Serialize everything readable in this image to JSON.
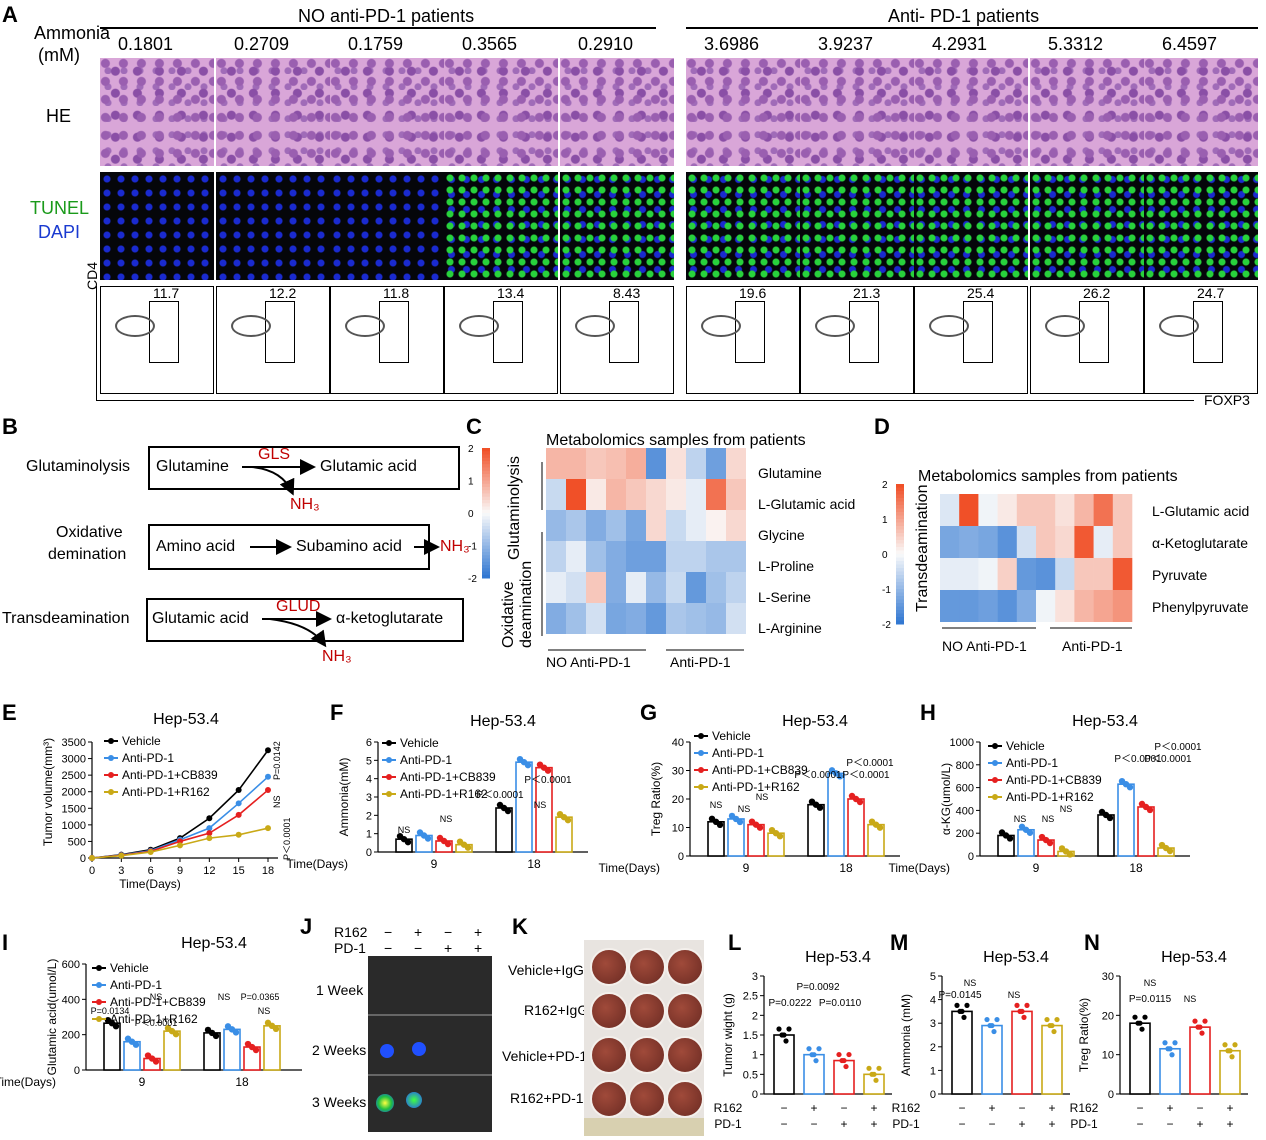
{
  "panelA": {
    "label": "A",
    "ammonia_label": "Ammonia",
    "ammonia_unit": "(mM)",
    "group_no": "NO anti-PD-1 patients",
    "group_anti": "Anti- PD-1 patients",
    "values": [
      "0.1801",
      "0.2709",
      "0.1759",
      "0.3565",
      "0.2910",
      "3.6986",
      "3.9237",
      "4.2931",
      "5.3312",
      "6.4597"
    ],
    "row_he": "HE",
    "row_tunel": "TUNEL",
    "row_dapi": "DAPI",
    "cd4": "CD4",
    "foxp3": "FOXP3",
    "treg": [
      "11.7",
      "12.2",
      "11.8",
      "13.4",
      "8.43",
      "19.6",
      "21.3",
      "25.4",
      "26.2",
      "24.7"
    ]
  },
  "panelB": {
    "label": "B",
    "row1_name": "Glutaminolysis",
    "row1_from": "Glutamine",
    "row1_enzyme": "GLS",
    "row1_to": "Glutamic acid",
    "row1_by": "NH₃",
    "row2_name1": "Oxidative",
    "row2_name2": "demination",
    "row2_from": "Amino acid",
    "row2_to": "Subamino acid",
    "row2_by": "NH₃",
    "row3_name": "Transdeamination",
    "row3_from": "Glutamic acid",
    "row3_enzyme": "GLUD",
    "row3_to": "α-ketoglutarate",
    "row3_by": "NH₃"
  },
  "panelC": {
    "label": "C",
    "title": "Metabolomics samples from patients",
    "rows": [
      "Glutamine",
      "L-Glutamic acid",
      "Glycine",
      "L-Proline",
      "L-Serine",
      "L-Arginine"
    ],
    "group1": "Glutaminolysis",
    "group2a": "Oxidative",
    "group2b": "deamination",
    "x1": "NO Anti-PD-1",
    "x2": "Anti-PD-1",
    "scale": [
      "2",
      "1",
      "0",
      "-1",
      "-2"
    ]
  },
  "panelD": {
    "label": "D",
    "title": "Metabolomics samples from patients",
    "rows": [
      "L-Glutamic acid",
      "α-Ketoglutarate",
      "Pyruvate",
      "Phenylpyruvate"
    ],
    "group": "Transdeamination",
    "x1": "NO Anti-PD-1",
    "x2": "Anti-PD-1",
    "scale": [
      "2",
      "1",
      "0",
      "-1",
      "-2"
    ]
  },
  "panelE": {
    "label": "E",
    "title": "Hep-53.4",
    "ylabel": "Tumor volume(mm³)",
    "xlabel": "Time(Days)",
    "legend": [
      "Vehicle",
      "Anti-PD-1",
      "Anti-PD-1+CB839",
      "Anti-PD-1+R162"
    ],
    "p1": "P=0.0142",
    "ns": "NS",
    "p2": "P＜0.0001"
  },
  "panelF": {
    "label": "F",
    "title": "Hep-53.4",
    "ylabel": "Ammonia(mM)",
    "xlabel": "Time(Days)",
    "legend": [
      "Vehicle",
      "Anti-PD-1",
      "Anti-PD-1+CB839",
      "Anti-PD-1+R162"
    ],
    "p1": "P＜0.0001",
    "p2": "P＜0.0001",
    "ns": "NS"
  },
  "panelG": {
    "label": "G",
    "title": "Hep-53.4",
    "ylabel": "Treg Ratio(%)",
    "xlabel": "Time(Days)",
    "legend": [
      "Vehicle",
      "Anti-PD-1",
      "Anti-PD-1+CB839",
      "Anti-PD-1+R162"
    ],
    "p1": "P＜0.0001",
    "p2": "P＜0.0001",
    "p3": "P＜0.0001",
    "ns": "NS"
  },
  "panelH": {
    "label": "H",
    "title": "Hep-53.4",
    "ylabel": "α-KG(umol/L)",
    "xlabel": "Time(Days)",
    "legend": [
      "Vehicle",
      "Anti-PD-1",
      "Anti-PD-1+CB839",
      "Anti-PD-1+R162"
    ],
    "p1": "P＜0.0001",
    "p2": "P＜0.0001",
    "p3": "P＜0.0001",
    "ns": "NS"
  },
  "panelI": {
    "label": "I",
    "title": "Hep-53.4",
    "ylabel": "Glutamic acid(umol/L)",
    "xlabel": "Time(Days)",
    "legend": [
      "Vehicle",
      "Anti-PD-1",
      "Anti-PD-1+CB839",
      "Anti-PD-1+R162"
    ],
    "p1": "P=0.0134",
    "p2": "P＜0.0001",
    "p3": "P＜0.0001",
    "p4": "P=0.0365",
    "ns": "NS"
  },
  "panelJ": {
    "label": "J",
    "r162": "R162",
    "pd1": "PD-1",
    "rows": [
      "1 Week",
      "2 Weeks",
      "3 Weeks"
    ],
    "signs_r162": [
      "−",
      "+",
      "−",
      "+"
    ],
    "signs_pd1": [
      "−",
      "−",
      "+",
      "+"
    ]
  },
  "panelK": {
    "label": "K",
    "rows": [
      "Vehicle+IgG",
      "R162+IgG",
      "Vehicle+PD-1",
      "R162+PD-1"
    ]
  },
  "panelL": {
    "label": "L",
    "title": "Hep-53.4",
    "ylabel": "Tumor wight (g)",
    "p1": "P=0.0092",
    "p2": "P=0.0222",
    "p3": "P=0.0110",
    "r162": "R162",
    "pd1": "PD-1",
    "signs_r162": [
      "−",
      "+",
      "−",
      "+"
    ],
    "signs_pd1": [
      "−",
      "−",
      "+",
      "+"
    ]
  },
  "panelM": {
    "label": "M",
    "title": "Hep-53.4",
    "ylabel": "Ammonia (mM)",
    "p1": "P=0.0145",
    "ns": "NS",
    "r162": "R162",
    "pd1": "PD-1",
    "signs_r162": [
      "−",
      "+",
      "−",
      "+"
    ],
    "signs_pd1": [
      "−",
      "−",
      "+",
      "+"
    ]
  },
  "panelN": {
    "label": "N",
    "title": "Hep-53.4",
    "ylabel": "Treg Ratio(%)",
    "p1": "P=0.0115",
    "ns": "NS",
    "r162": "R162",
    "pd1": "PD-1",
    "signs_r162": [
      "−",
      "+",
      "−",
      "+"
    ],
    "signs_pd1": [
      "−",
      "−",
      "+",
      "+"
    ]
  },
  "chart_data": [
    {
      "type": "line",
      "id": "E",
      "title": "Hep-53.4",
      "x": [
        0,
        3,
        6,
        9,
        12,
        15,
        18
      ],
      "xlabel": "Time(Days)",
      "ylabel": "Tumor volume(mm³)",
      "ylim": [
        0,
        3500
      ],
      "series": [
        {
          "name": "Vehicle",
          "values": [
            0,
            100,
            250,
            600,
            1200,
            2050,
            3250
          ]
        },
        {
          "name": "Anti-PD-1",
          "values": [
            0,
            90,
            220,
            550,
            900,
            1650,
            2450
          ]
        },
        {
          "name": "Anti-PD-1+CB839",
          "values": [
            0,
            80,
            200,
            500,
            750,
            1300,
            2050
          ]
        },
        {
          "name": "Anti-PD-1+R162",
          "values": [
            0,
            70,
            180,
            380,
            600,
            700,
            900
          ]
        }
      ]
    },
    {
      "type": "bar",
      "id": "F",
      "title": "Hep-53.4",
      "categories": [
        "9",
        "18"
      ],
      "ylabel": "Ammonia(mM)",
      "ylim": [
        0,
        6
      ],
      "series": [
        {
          "name": "Vehicle",
          "values": [
            0.7,
            2.4
          ]
        },
        {
          "name": "Anti-PD-1",
          "values": [
            0.9,
            4.9
          ]
        },
        {
          "name": "Anti-PD-1+CB839",
          "values": [
            0.6,
            4.6
          ]
        },
        {
          "name": "Anti-PD-1+R162",
          "values": [
            0.4,
            1.9
          ]
        }
      ]
    },
    {
      "type": "bar",
      "id": "G",
      "title": "Hep-53.4",
      "categories": [
        "9",
        "18"
      ],
      "ylabel": "Treg Ratio(%)",
      "ylim": [
        0,
        40
      ],
      "series": [
        {
          "name": "Vehicle",
          "values": [
            12,
            18
          ]
        },
        {
          "name": "Anti-PD-1",
          "values": [
            13,
            29
          ]
        },
        {
          "name": "Anti-PD-1+CB839",
          "values": [
            11,
            20
          ]
        },
        {
          "name": "Anti-PD-1+R162",
          "values": [
            8,
            11
          ]
        }
      ]
    },
    {
      "type": "bar",
      "id": "H",
      "title": "Hep-53.4",
      "categories": [
        "9",
        "18"
      ],
      "ylabel": "α-KG(umol/L)",
      "ylim": [
        0,
        1000
      ],
      "series": [
        {
          "name": "Vehicle",
          "values": [
            180,
            360
          ]
        },
        {
          "name": "Anti-PD-1",
          "values": [
            230,
            630
          ]
        },
        {
          "name": "Anti-PD-1+CB839",
          "values": [
            140,
            430
          ]
        },
        {
          "name": "Anti-PD-1+R162",
          "values": [
            40,
            70
          ]
        }
      ]
    },
    {
      "type": "bar",
      "id": "I",
      "title": "Hep-53.4",
      "categories": [
        "9",
        "18"
      ],
      "ylabel": "Glutamic acid(umol/L)",
      "ylim": [
        0,
        600
      ],
      "series": [
        {
          "name": "Vehicle",
          "values": [
            265,
            210
          ]
        },
        {
          "name": "Anti-PD-1",
          "values": [
            160,
            230
          ]
        },
        {
          "name": "Anti-PD-1+CB839",
          "values": [
            65,
            130
          ]
        },
        {
          "name": "Anti-PD-1+R162",
          "values": [
            220,
            250
          ]
        }
      ]
    },
    {
      "type": "bar",
      "id": "L",
      "title": "Hep-53.4",
      "categories": [
        "1",
        "2",
        "3",
        "4"
      ],
      "ylabel": "Tumor wight (g)",
      "ylim": [
        0,
        3
      ],
      "values": [
        1.5,
        1.0,
        0.85,
        0.5
      ]
    },
    {
      "type": "bar",
      "id": "M",
      "title": "Hep-53.4",
      "categories": [
        "1",
        "2",
        "3",
        "4"
      ],
      "ylabel": "Ammonia (mM)",
      "ylim": [
        0,
        5
      ],
      "values": [
        3.5,
        2.9,
        3.5,
        2.9
      ]
    },
    {
      "type": "bar",
      "id": "N",
      "title": "Hep-53.4",
      "categories": [
        "1",
        "2",
        "3",
        "4"
      ],
      "ylabel": "Treg Ratio(%)",
      "ylim": [
        0,
        30
      ],
      "values": [
        18,
        11.5,
        17,
        11
      ]
    }
  ],
  "colors": {
    "vehicle": "#000000",
    "antipd1": "#3a8ee6",
    "cb839": "#e52020",
    "r162": "#c9a917",
    "enzyme": "#c00000"
  }
}
